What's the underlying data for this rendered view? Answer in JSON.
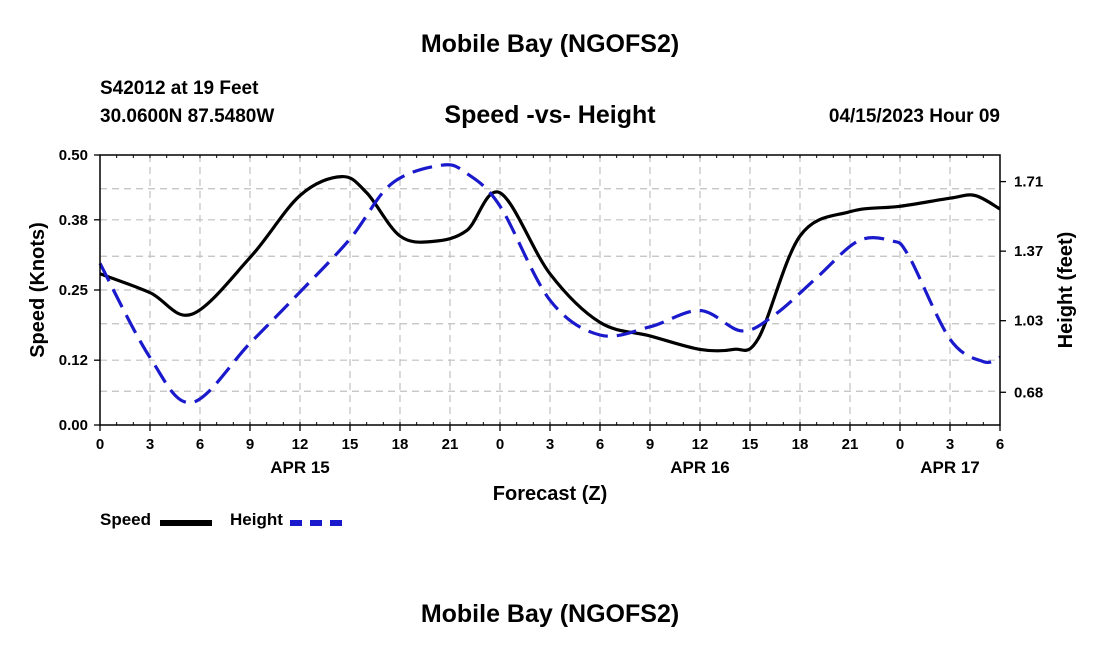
{
  "header": {
    "title": "Mobile Bay (NGOFS2)",
    "station": "S42012 at 19 Feet",
    "coords": "30.0600N  87.5480W",
    "subtitle": "Speed -vs- Height",
    "datetime": "04/15/2023 Hour 09"
  },
  "footer": {
    "title": "Mobile Bay (NGOFS2)"
  },
  "legend": {
    "speed_label": "Speed",
    "height_label": "Height"
  },
  "colors": {
    "speed": "#000000",
    "height": "#1a1acc",
    "grid": "#c0c0c0"
  },
  "chart_data": {
    "type": "line",
    "title": "Speed -vs- Height",
    "xlabel": "Forecast (Z)",
    "ylabel": "Speed (Knots)",
    "y2label": "Height (feet)",
    "xlim": [
      0,
      54
    ],
    "ylim": [
      0,
      0.5
    ],
    "y2lim": [
      0.52,
      1.84
    ],
    "x_ticks": [
      0,
      3,
      6,
      9,
      12,
      15,
      18,
      21,
      24,
      27,
      30,
      33,
      36,
      39,
      42,
      45,
      48,
      51,
      54
    ],
    "x_tick_labels": [
      "0",
      "3",
      "6",
      "9",
      "12",
      "15",
      "18",
      "21",
      "0",
      "3",
      "6",
      "9",
      "12",
      "15",
      "18",
      "21",
      "0",
      "3",
      "6"
    ],
    "y_ticks": [
      0.0,
      0.12,
      0.25,
      0.38,
      0.5
    ],
    "y_tick_labels": [
      "0.00",
      "0.12",
      "0.25",
      "0.38",
      "0.50"
    ],
    "y2_ticks": [
      0.68,
      1.03,
      1.37,
      1.71
    ],
    "y2_tick_labels": [
      "0.68",
      "1.03",
      "1.37",
      "1.71"
    ],
    "date_labels": [
      {
        "x": 12,
        "label": "APR 15"
      },
      {
        "x": 36,
        "label": "APR 16"
      },
      {
        "x": 51,
        "label": "APR 17"
      }
    ],
    "series": [
      {
        "name": "Speed",
        "axis": "left",
        "style": "solid",
        "x": [
          0,
          3,
          5.5,
          9,
          12,
          14.5,
          16,
          18,
          20,
          22,
          24,
          27,
          30,
          33,
          36,
          38,
          39.5,
          42,
          45,
          48,
          51,
          52.5,
          54
        ],
        "values": [
          0.28,
          0.245,
          0.205,
          0.31,
          0.425,
          0.46,
          0.43,
          0.35,
          0.34,
          0.36,
          0.43,
          0.28,
          0.19,
          0.165,
          0.14,
          0.14,
          0.16,
          0.35,
          0.395,
          0.405,
          0.42,
          0.425,
          0.4
        ]
      },
      {
        "name": "Height",
        "axis": "right",
        "style": "dashed",
        "x": [
          0,
          3,
          5.5,
          9,
          12,
          15,
          17.5,
          20.5,
          22,
          24,
          27,
          30,
          33,
          36,
          38.5,
          40.5,
          43,
          45.5,
          47.5,
          48.5,
          51,
          53,
          54
        ],
        "values": [
          1.31,
          0.85,
          0.63,
          0.92,
          1.17,
          1.43,
          1.7,
          1.79,
          1.75,
          1.59,
          1.13,
          0.96,
          1.0,
          1.08,
          0.98,
          1.06,
          1.24,
          1.42,
          1.42,
          1.35,
          0.94,
          0.83,
          0.85
        ]
      }
    ]
  }
}
